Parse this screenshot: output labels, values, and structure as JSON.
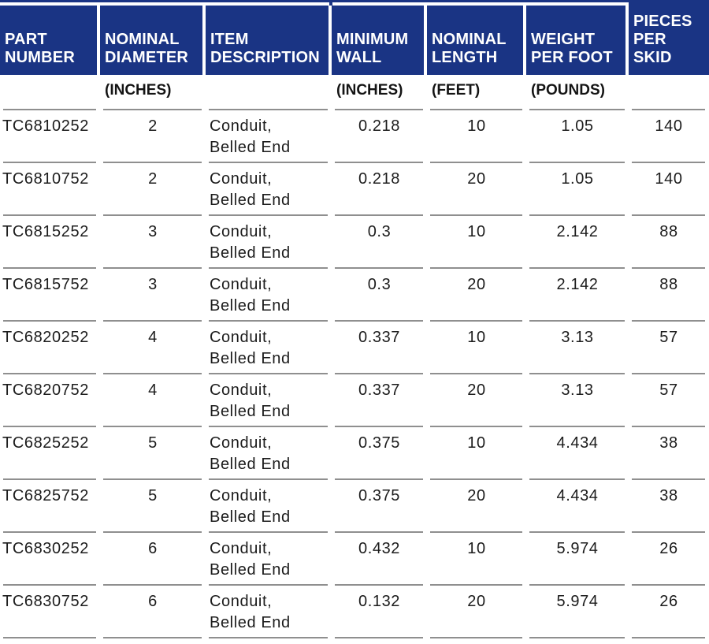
{
  "chart_data": {
    "type": "table",
    "title": "",
    "columns": [
      {
        "label": "PART NUMBER",
        "unit": ""
      },
      {
        "label": "NOMINAL DIAMETER",
        "unit": "(INCHES)"
      },
      {
        "label": "ITEM DESCRIPTION",
        "unit": ""
      },
      {
        "label": "MINIMUM WALL",
        "unit": "(INCHES)"
      },
      {
        "label": "NOMINAL LENGTH",
        "unit": "(FEET)"
      },
      {
        "label": "WEIGHT PER FOOT",
        "unit": "(POUNDS)"
      },
      {
        "label": "PIECES PER SKID",
        "unit": ""
      }
    ],
    "rows": [
      [
        "TC6810252",
        "2",
        "Conduit, Belled End",
        "0.218",
        "10",
        "1.05",
        "140"
      ],
      [
        "TC6810752",
        "2",
        "Conduit, Belled End",
        "0.218",
        "20",
        "1.05",
        "140"
      ],
      [
        "TC6815252",
        "3",
        "Conduit, Belled End",
        "0.3",
        "10",
        "2.142",
        "88"
      ],
      [
        "TC6815752",
        "3",
        "Conduit, Belled End",
        "0.3",
        "20",
        "2.142",
        "88"
      ],
      [
        "TC6820252",
        "4",
        "Conduit, Belled End",
        "0.337",
        "10",
        "3.13",
        "57"
      ],
      [
        "TC6820752",
        "4",
        "Conduit, Belled End",
        "0.337",
        "20",
        "3.13",
        "57"
      ],
      [
        "TC6825252",
        "5",
        "Conduit, Belled End",
        "0.375",
        "10",
        "4.434",
        "38"
      ],
      [
        "TC6825752",
        "5",
        "Conduit, Belled End",
        "0.375",
        "20",
        "4.434",
        "38"
      ],
      [
        "TC6830252",
        "6",
        "Conduit, Belled End",
        "0.432",
        "10",
        "5.974",
        "26"
      ],
      [
        "TC6830752",
        "6",
        "Conduit, Belled End",
        "0.132",
        "20",
        "5.974",
        "26"
      ]
    ],
    "colors": {
      "header_bg": "#1a3484",
      "header_text": "#ffffff",
      "separator": "#8f8f8f",
      "body_text": "#1c1c1c"
    }
  }
}
